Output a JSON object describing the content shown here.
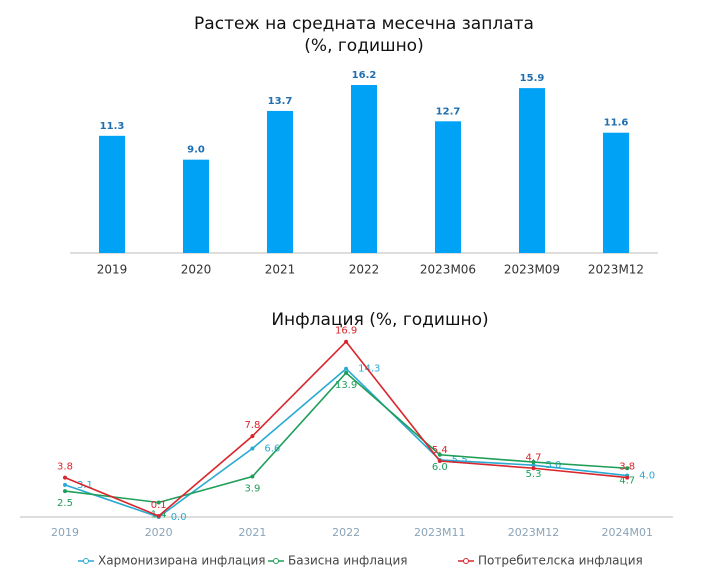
{
  "chart_data": [
    {
      "type": "bar",
      "title": "Растеж на средната месечна заплата",
      "subtitle": "(%, годишно)",
      "categories": [
        "2019",
        "2020",
        "2021",
        "2022",
        "2023M06",
        "2023M09",
        "2023M12"
      ],
      "values": [
        11.3,
        9.0,
        13.7,
        16.2,
        12.7,
        15.9,
        11.6
      ],
      "value_labels": [
        "11.3",
        "9.0",
        "13.7",
        "16.2",
        "12.7",
        "15.9",
        "11.6"
      ],
      "color": "#00a2f5"
    },
    {
      "type": "line",
      "title": "Инфлация (%, годишно)",
      "categories": [
        "2019",
        "2020",
        "2021",
        "2022",
        "2023M11",
        "2023M12",
        "2024M01"
      ],
      "series": [
        {
          "name": "Хармонизирана инфлация",
          "color": "#2aa9d2",
          "values": [
            3.1,
            0.0,
            6.6,
            14.3,
            5.5,
            5.0,
            4.0
          ],
          "value_labels": [
            "3.1",
            "0.0",
            "6.6",
            "14.3",
            "5.5",
            "5.0",
            "4.0"
          ]
        },
        {
          "name": "Базисна инфлация",
          "color": "#1f9e5a",
          "values": [
            2.5,
            1.4,
            3.9,
            13.9,
            6.0,
            5.3,
            4.7
          ],
          "value_labels": [
            "2.5",
            "1.4",
            "3.9",
            "13.9",
            "6.0",
            "5.3",
            "4.7"
          ]
        },
        {
          "name": "Потребителска инфлация",
          "color": "#d9262c",
          "values": [
            3.8,
            0.1,
            7.8,
            16.9,
            5.4,
            4.7,
            3.8
          ],
          "value_labels": [
            "3.8",
            "0.1",
            "7.8",
            "16.9",
            "5.4",
            "4.7",
            "3.8"
          ]
        }
      ]
    }
  ]
}
